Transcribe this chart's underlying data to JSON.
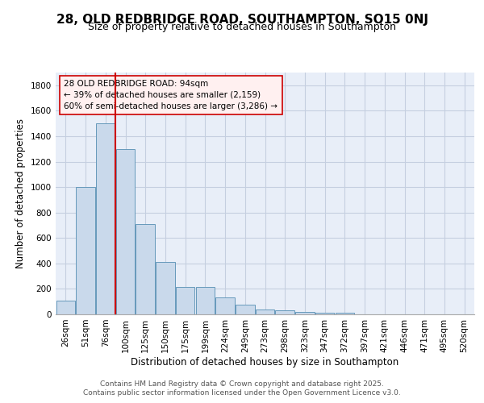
{
  "title": "28, OLD REDBRIDGE ROAD, SOUTHAMPTON, SO15 0NJ",
  "subtitle": "Size of property relative to detached houses in Southampton",
  "xlabel": "Distribution of detached houses by size in Southampton",
  "ylabel": "Number of detached properties",
  "categories": [
    "26sqm",
    "51sqm",
    "76sqm",
    "100sqm",
    "125sqm",
    "150sqm",
    "175sqm",
    "199sqm",
    "224sqm",
    "249sqm",
    "273sqm",
    "298sqm",
    "323sqm",
    "347sqm",
    "372sqm",
    "397sqm",
    "421sqm",
    "446sqm",
    "471sqm",
    "495sqm",
    "520sqm"
  ],
  "values": [
    110,
    1000,
    1500,
    1300,
    710,
    410,
    215,
    215,
    135,
    75,
    40,
    30,
    20,
    15,
    15,
    0,
    0,
    0,
    0,
    0,
    0
  ],
  "bar_color": "#c9d9eb",
  "bar_edge_color": "#6699bb",
  "grid_color": "#c5cfe0",
  "background_color": "#e8eef8",
  "property_line_color": "#cc0000",
  "property_line_index": 2.5,
  "annotation_text": "28 OLD REDBRIDGE ROAD: 94sqm\n← 39% of detached houses are smaller (2,159)\n60% of semi-detached houses are larger (3,286) →",
  "annotation_box_facecolor": "#fff0f0",
  "annotation_box_edgecolor": "#cc0000",
  "footer_text": "Contains HM Land Registry data © Crown copyright and database right 2025.\nContains public sector information licensed under the Open Government Licence v3.0.",
  "ylim": [
    0,
    1900
  ],
  "yticks": [
    0,
    200,
    400,
    600,
    800,
    1000,
    1200,
    1400,
    1600,
    1800
  ],
  "title_fontsize": 11,
  "subtitle_fontsize": 9,
  "axis_label_fontsize": 8.5,
  "tick_fontsize": 7.5,
  "annotation_fontsize": 7.5,
  "footer_fontsize": 6.5
}
